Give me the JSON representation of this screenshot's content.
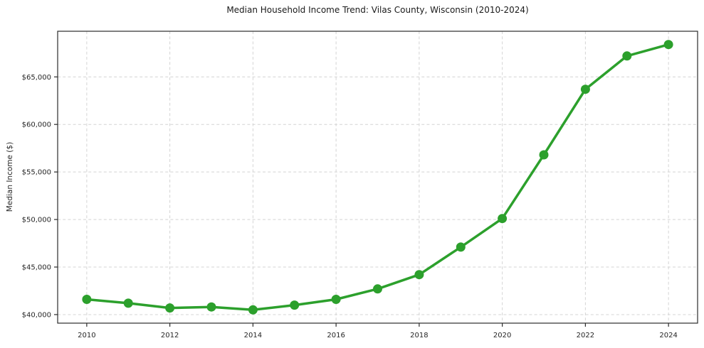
{
  "chart_data": {
    "type": "line",
    "title": "Median Household Income Trend: Vilas County, Wisconsin (2010-2024)",
    "xlabel": "",
    "ylabel": "Median Income ($)",
    "series": [
      {
        "name": "Median Household Income",
        "x": [
          2010,
          2011,
          2012,
          2013,
          2014,
          2015,
          2016,
          2017,
          2018,
          2019,
          2020,
          2021,
          2022,
          2023,
          2024
        ],
        "values": [
          41600,
          41200,
          40700,
          40800,
          40500,
          41000,
          41600,
          42700,
          44200,
          47100,
          50100,
          56800,
          63700,
          67200,
          68400
        ]
      }
    ],
    "xticks": {
      "values": [
        2010,
        2012,
        2014,
        2016,
        2018,
        2020,
        2022,
        2024
      ],
      "labels": [
        "2010",
        "2012",
        "2014",
        "2016",
        "2018",
        "2020",
        "2022",
        "2024"
      ]
    },
    "yticks": {
      "values": [
        40000,
        45000,
        50000,
        55000,
        60000,
        65000
      ],
      "labels": [
        "$40,000",
        "$45,000",
        "$50,000",
        "$55,000",
        "$60,000",
        "$65,000"
      ]
    },
    "xlim": [
      2009.3,
      2024.7
    ],
    "ylim": [
      39100,
      69800
    ],
    "grid": true,
    "grid_style": "dashed",
    "legend": false,
    "marker": "circle",
    "colors": {
      "line": "#2ca02c",
      "marker": "#2ca02c",
      "grid": "#d4d4d4",
      "spine": "#2b2b2b",
      "tick_text": "#262626",
      "background": "#ffffff"
    }
  }
}
